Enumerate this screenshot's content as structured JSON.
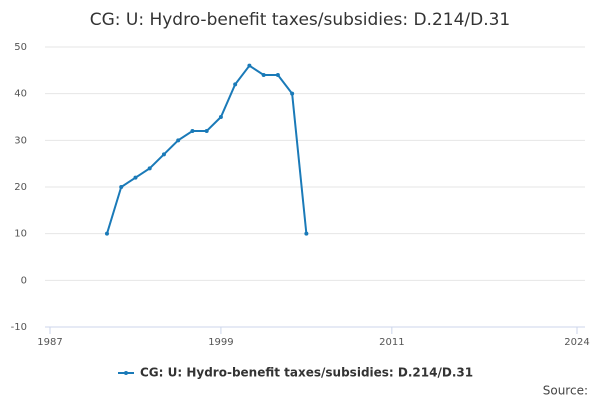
{
  "chart_data": {
    "type": "line",
    "title": "CG: U: Hydro-benefit taxes/subsidies: D.214/D.31",
    "x": [
      1991,
      1992,
      1993,
      1994,
      1995,
      1996,
      1997,
      1998,
      1999,
      2000,
      2001,
      2002,
      2003,
      2004,
      2005
    ],
    "series": [
      {
        "name": "CG: U: Hydro-benefit taxes/subsidies: D.214/D.31",
        "color": "#1a7ab8",
        "values": [
          10,
          20,
          22,
          24,
          27,
          30,
          32,
          32,
          35,
          42,
          46,
          44,
          44,
          40,
          10
        ]
      }
    ],
    "xlim": [
      1987,
      2024
    ],
    "xticks": [
      1987,
      1999,
      2011,
      2024
    ],
    "ylim": [
      -10,
      50
    ],
    "yticks": [
      -10,
      0,
      10,
      20,
      30,
      40,
      50
    ],
    "grid": true,
    "legend": "bottom",
    "source": "Source:"
  }
}
